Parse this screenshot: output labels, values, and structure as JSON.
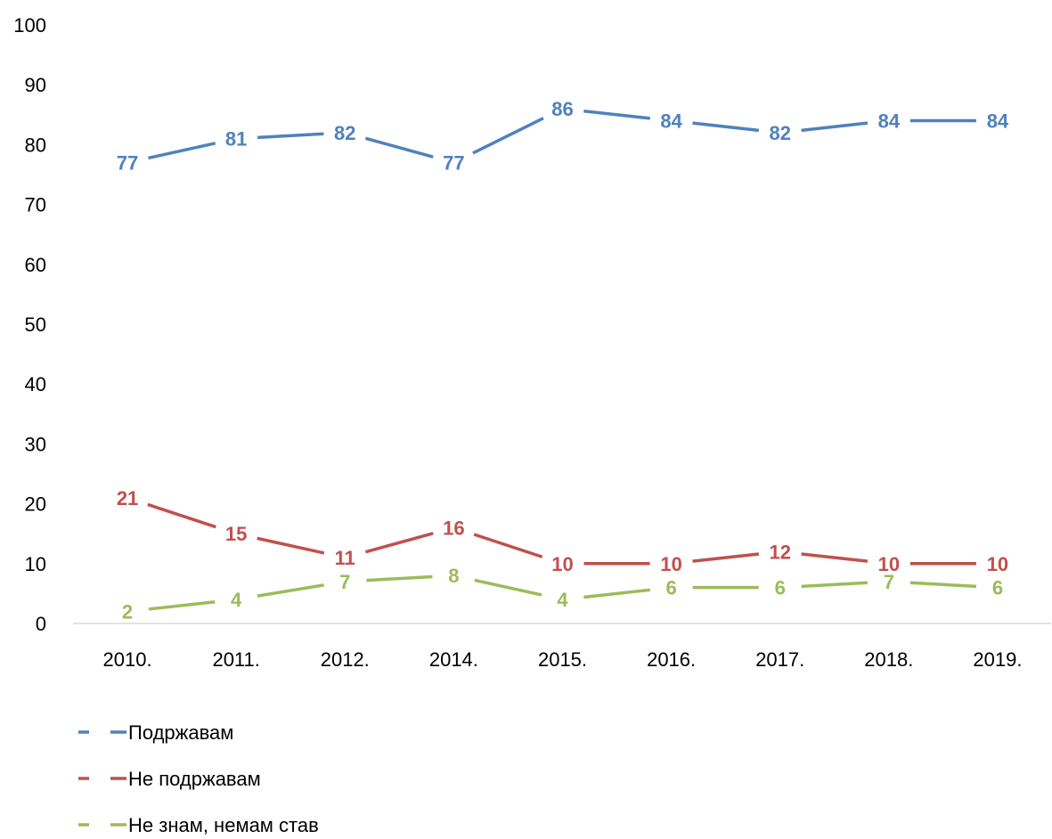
{
  "chart_data": {
    "type": "line",
    "categories": [
      "2010.",
      "2011.",
      "2012.",
      "2014.",
      "2015.",
      "2016.",
      "2017.",
      "2018.",
      "2019."
    ],
    "ylim": [
      0,
      100
    ],
    "yticks": [
      0,
      10,
      20,
      30,
      40,
      50,
      60,
      70,
      80,
      90,
      100
    ],
    "grid": false,
    "legend_position": "bottom-left",
    "series": [
      {
        "name": "Подржавам",
        "color": "#4F81BD",
        "values": [
          77,
          81,
          82,
          77,
          86,
          84,
          82,
          84,
          84
        ]
      },
      {
        "name": "Не подржавам",
        "color": "#C0504D",
        "values": [
          21,
          15,
          11,
          16,
          10,
          10,
          12,
          10,
          10
        ]
      },
      {
        "name": "Не знам, немам став",
        "color": "#9BBB59",
        "values": [
          2,
          4,
          7,
          8,
          4,
          6,
          6,
          7,
          6
        ]
      }
    ]
  }
}
